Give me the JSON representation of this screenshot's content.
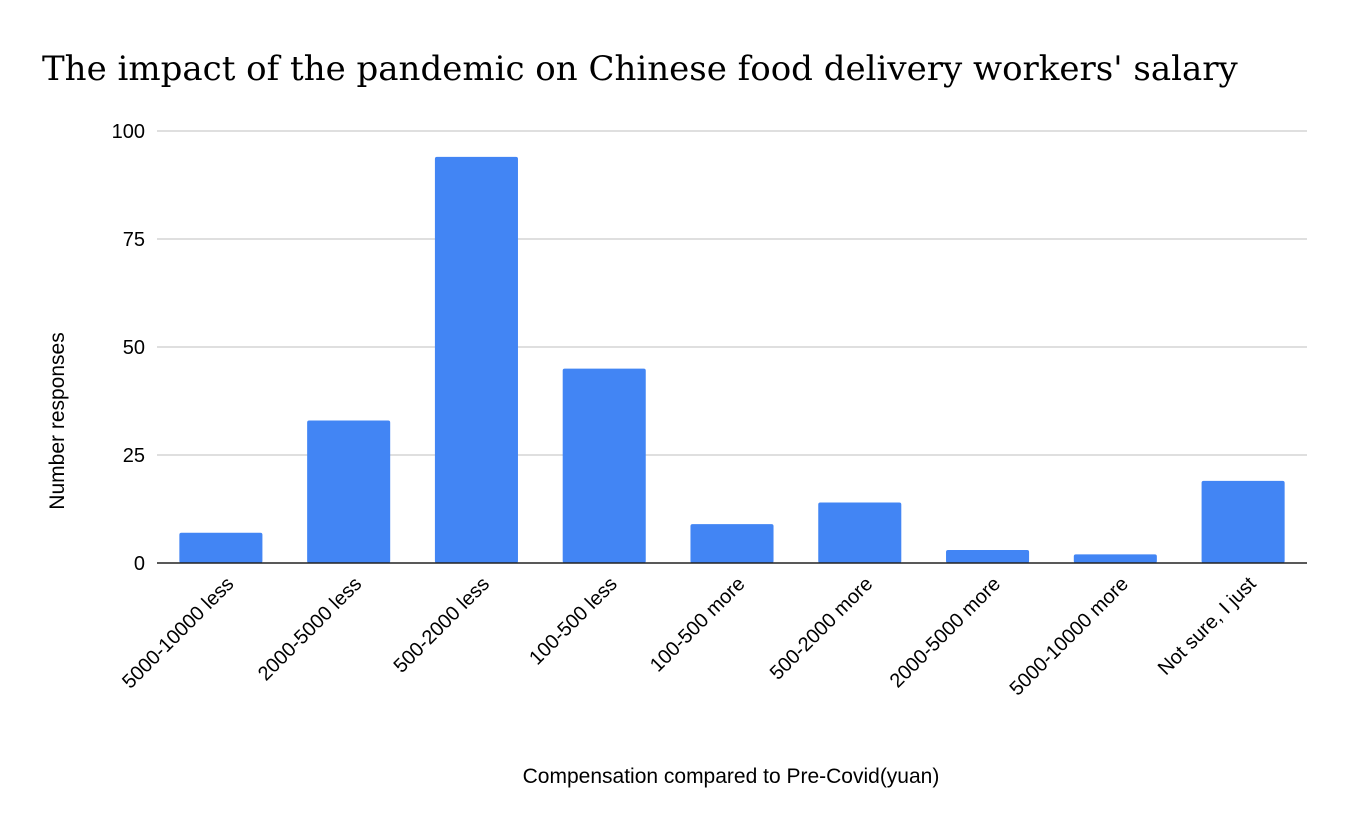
{
  "chart_data": {
    "type": "bar",
    "title": "The impact of the pandemic on Chinese food delivery workers' salary",
    "xlabel": "Compensation compared to Pre-Covid(yuan)",
    "ylabel": "Number responses",
    "categories": [
      "5000-10000 less",
      "2000-5000 less",
      "500-2000 less",
      "100-500 less",
      "100-500 more",
      "500-2000 more",
      "2000-5000 more",
      "5000-10000 more",
      "Not sure, I just"
    ],
    "values": [
      7,
      33,
      94,
      45,
      9,
      14,
      3,
      2,
      19
    ],
    "ylim": [
      0,
      100
    ],
    "yticks": [
      0,
      25,
      50,
      75,
      100
    ],
    "grid": true,
    "legend": "none",
    "bar_color": "#4285f4"
  }
}
